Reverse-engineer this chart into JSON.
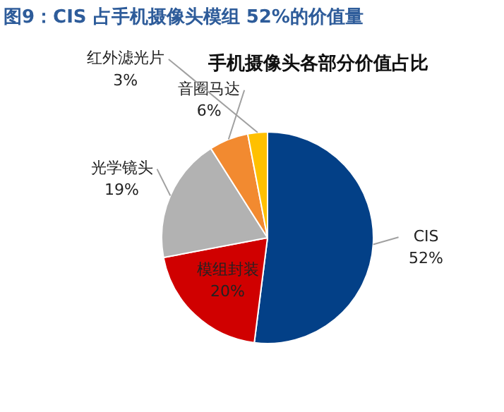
{
  "chart_data": {
    "type": "pie",
    "title": "图9：CIS 占手机摄像头模组 52%的价值量",
    "subtitle": "手机摄像头各部分价值占比",
    "categories": [
      "CIS",
      "模组封装",
      "光学镜头",
      "音圈马达",
      "红外滤光片"
    ],
    "values": [
      52,
      20,
      19,
      6,
      3
    ],
    "colors": [
      "#034087",
      "#d00000",
      "#b2b2b2",
      "#f28a30",
      "#ffc000"
    ],
    "value_labels": [
      "52%",
      "20%",
      "19%",
      "6%",
      "3%"
    ]
  }
}
